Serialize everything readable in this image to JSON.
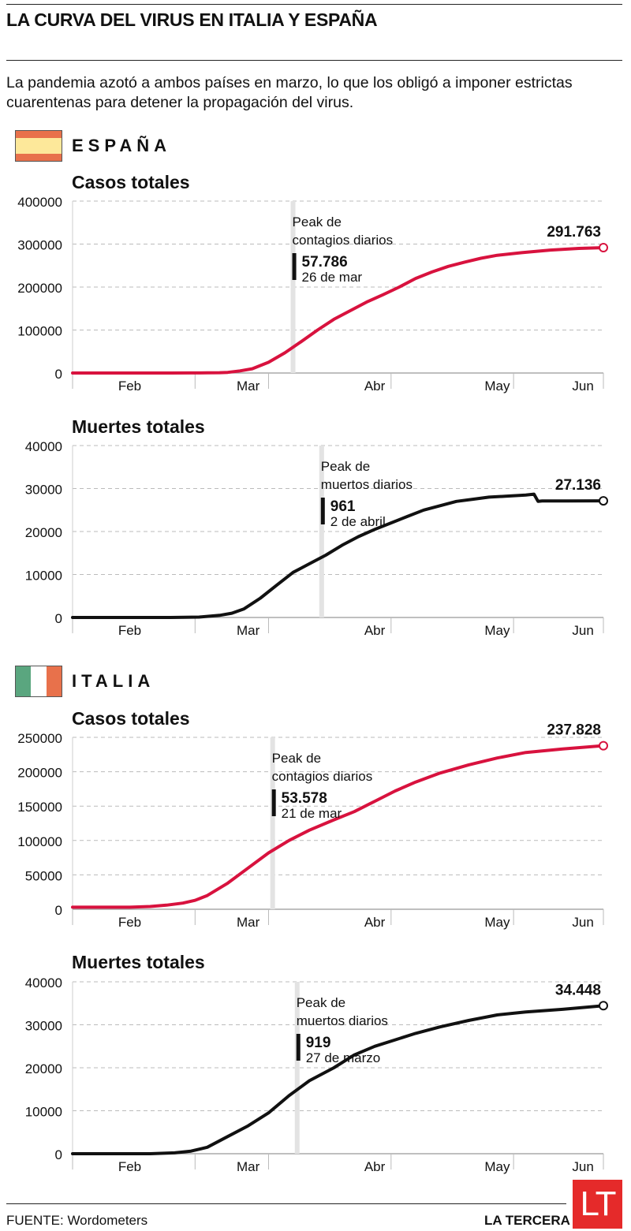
{
  "title": "LA CURVA DEL VIRUS EN ITALIA Y ESPAÑA",
  "subtitle": "La pandemia azotó a ambos países en marzo, lo que los obligó a imponer estrictas cuarentenas para detener la propagación del virus.",
  "colors": {
    "cases": "#d8123e",
    "deaths": "#111111",
    "peak_bar": "#e3e3e3",
    "grid": "#bbbbbb"
  },
  "sections": {
    "spain": {
      "name": "ESPAÑA",
      "flag": "spain-flag",
      "flag_colors": [
        "#e8714b",
        "#fde89a",
        "#e8714b"
      ]
    },
    "italy": {
      "name": "ITALIA",
      "flag": "italy-flag",
      "flag_colors": [
        "#5aa67f",
        "#ffffff",
        "#e8714b"
      ]
    }
  },
  "chart_data": [
    {
      "type": "line",
      "country": "ESPAÑA",
      "title": "Casos totales",
      "color": "cases",
      "ylim": [
        0,
        400000
      ],
      "yticks": [
        0,
        100000,
        200000,
        300000,
        400000
      ],
      "months": [
        "Feb",
        "Mar",
        "Abr",
        "May",
        "Jun"
      ],
      "x": [
        "2020-02-01",
        "2020-02-15",
        "2020-02-25",
        "2020-03-01",
        "2020-03-05",
        "2020-03-08",
        "2020-03-10",
        "2020-03-13",
        "2020-03-16",
        "2020-03-20",
        "2020-03-24",
        "2020-03-28",
        "2020-04-01",
        "2020-04-05",
        "2020-04-09",
        "2020-04-13",
        "2020-04-17",
        "2020-04-21",
        "2020-04-25",
        "2020-04-29",
        "2020-05-03",
        "2020-05-07",
        "2020-05-11",
        "2020-05-15",
        "2020-05-21",
        "2020-05-28",
        "2020-06-04",
        "2020-06-10"
      ],
      "y": [
        0,
        0,
        0,
        100,
        300,
        700,
        1500,
        5000,
        10000,
        25000,
        47000,
        73000,
        100000,
        125000,
        145000,
        165000,
        182000,
        200000,
        220000,
        235000,
        248000,
        258000,
        267000,
        274000,
        280000,
        286000,
        290000,
        291763
      ],
      "end_label": "291.763",
      "peak": {
        "date": "2020-03-26",
        "heading": [
          "Peak de",
          "contagios diarios"
        ],
        "value": "57.786",
        "date_label": "26 de mar"
      }
    },
    {
      "type": "line",
      "country": "ESPAÑA",
      "title": "Muertes totales",
      "color": "deaths",
      "ylim": [
        0,
        40000
      ],
      "yticks": [
        0,
        10000,
        20000,
        30000,
        40000
      ],
      "months": [
        "Feb",
        "Mar",
        "Abr",
        "May",
        "Jun"
      ],
      "x": [
        "2020-02-01",
        "2020-02-25",
        "2020-03-03",
        "2020-03-08",
        "2020-03-11",
        "2020-03-14",
        "2020-03-18",
        "2020-03-22",
        "2020-03-26",
        "2020-03-30",
        "2020-04-03",
        "2020-04-07",
        "2020-04-11",
        "2020-04-15",
        "2020-04-19",
        "2020-04-23",
        "2020-04-27",
        "2020-05-01",
        "2020-05-05",
        "2020-05-09",
        "2020-05-13",
        "2020-05-17",
        "2020-05-22",
        "2020-05-24",
        "2020-05-25",
        "2020-05-26",
        "2020-06-01",
        "2020-06-10"
      ],
      "y": [
        0,
        0,
        100,
        500,
        1000,
        2000,
        4500,
        7500,
        10500,
        12500,
        14500,
        16800,
        18800,
        20500,
        22000,
        23500,
        25000,
        26000,
        27000,
        27500,
        28000,
        28200,
        28500,
        28700,
        27000,
        27100,
        27100,
        27136
      ],
      "end_label": "27.136",
      "peak": {
        "date": "2020-04-02",
        "heading": [
          "Peak de",
          "muertos diarios"
        ],
        "value": "961",
        "date_label": "2 de abril"
      }
    },
    {
      "type": "line",
      "country": "ITALIA",
      "title": "Casos totales",
      "color": "cases",
      "ylim": [
        0,
        250000
      ],
      "yticks": [
        0,
        50000,
        100000,
        150000,
        200000,
        250000
      ],
      "months": [
        "Feb",
        "Mar",
        "Abr",
        "May",
        "Jun"
      ],
      "x": [
        "2020-02-01",
        "2020-02-15",
        "2020-02-20",
        "2020-02-24",
        "2020-02-28",
        "2020-03-02",
        "2020-03-05",
        "2020-03-10",
        "2020-03-15",
        "2020-03-20",
        "2020-03-25",
        "2020-03-30",
        "2020-04-05",
        "2020-04-10",
        "2020-04-15",
        "2020-04-20",
        "2020-04-25",
        "2020-05-01",
        "2020-05-08",
        "2020-05-15",
        "2020-05-22",
        "2020-05-31",
        "2020-06-10"
      ],
      "y": [
        3000,
        3000,
        4000,
        6000,
        9000,
        13000,
        20000,
        38000,
        60000,
        82000,
        100000,
        115000,
        130000,
        142000,
        157000,
        172000,
        185000,
        198000,
        210000,
        220000,
        228000,
        233000,
        237828
      ],
      "end_label": "237.828",
      "peak": {
        "date": "2020-03-21",
        "heading": [
          "Peak de",
          "contagios diarios"
        ],
        "value": "53.578",
        "date_label": "21 de mar"
      }
    },
    {
      "type": "line",
      "country": "ITALIA",
      "title": "Muertes totales",
      "color": "deaths",
      "ylim": [
        0,
        40000
      ],
      "yticks": [
        0,
        10000,
        20000,
        30000,
        40000
      ],
      "months": [
        "Feb",
        "Mar",
        "Abr",
        "May",
        "Jun"
      ],
      "x": [
        "2020-02-01",
        "2020-02-20",
        "2020-02-26",
        "2020-03-01",
        "2020-03-05",
        "2020-03-10",
        "2020-03-15",
        "2020-03-20",
        "2020-03-25",
        "2020-03-30",
        "2020-04-05",
        "2020-04-10",
        "2020-04-15",
        "2020-04-20",
        "2020-04-25",
        "2020-05-01",
        "2020-05-08",
        "2020-05-15",
        "2020-05-22",
        "2020-05-31",
        "2020-06-10"
      ],
      "y": [
        0,
        0,
        200,
        600,
        1500,
        4000,
        6500,
        9500,
        13500,
        17000,
        20000,
        23000,
        25000,
        26500,
        28000,
        29500,
        31000,
        32300,
        33000,
        33600,
        34448
      ],
      "end_label": "34.448",
      "peak": {
        "date": "2020-03-27",
        "heading": [
          "Peak de",
          "muertos diarios"
        ],
        "value": "919",
        "date_label": "27 de marzo"
      }
    }
  ],
  "footer": {
    "source": "FUENTE: Wordometers",
    "brand": "LA TERCERA",
    "logo": "LT"
  }
}
